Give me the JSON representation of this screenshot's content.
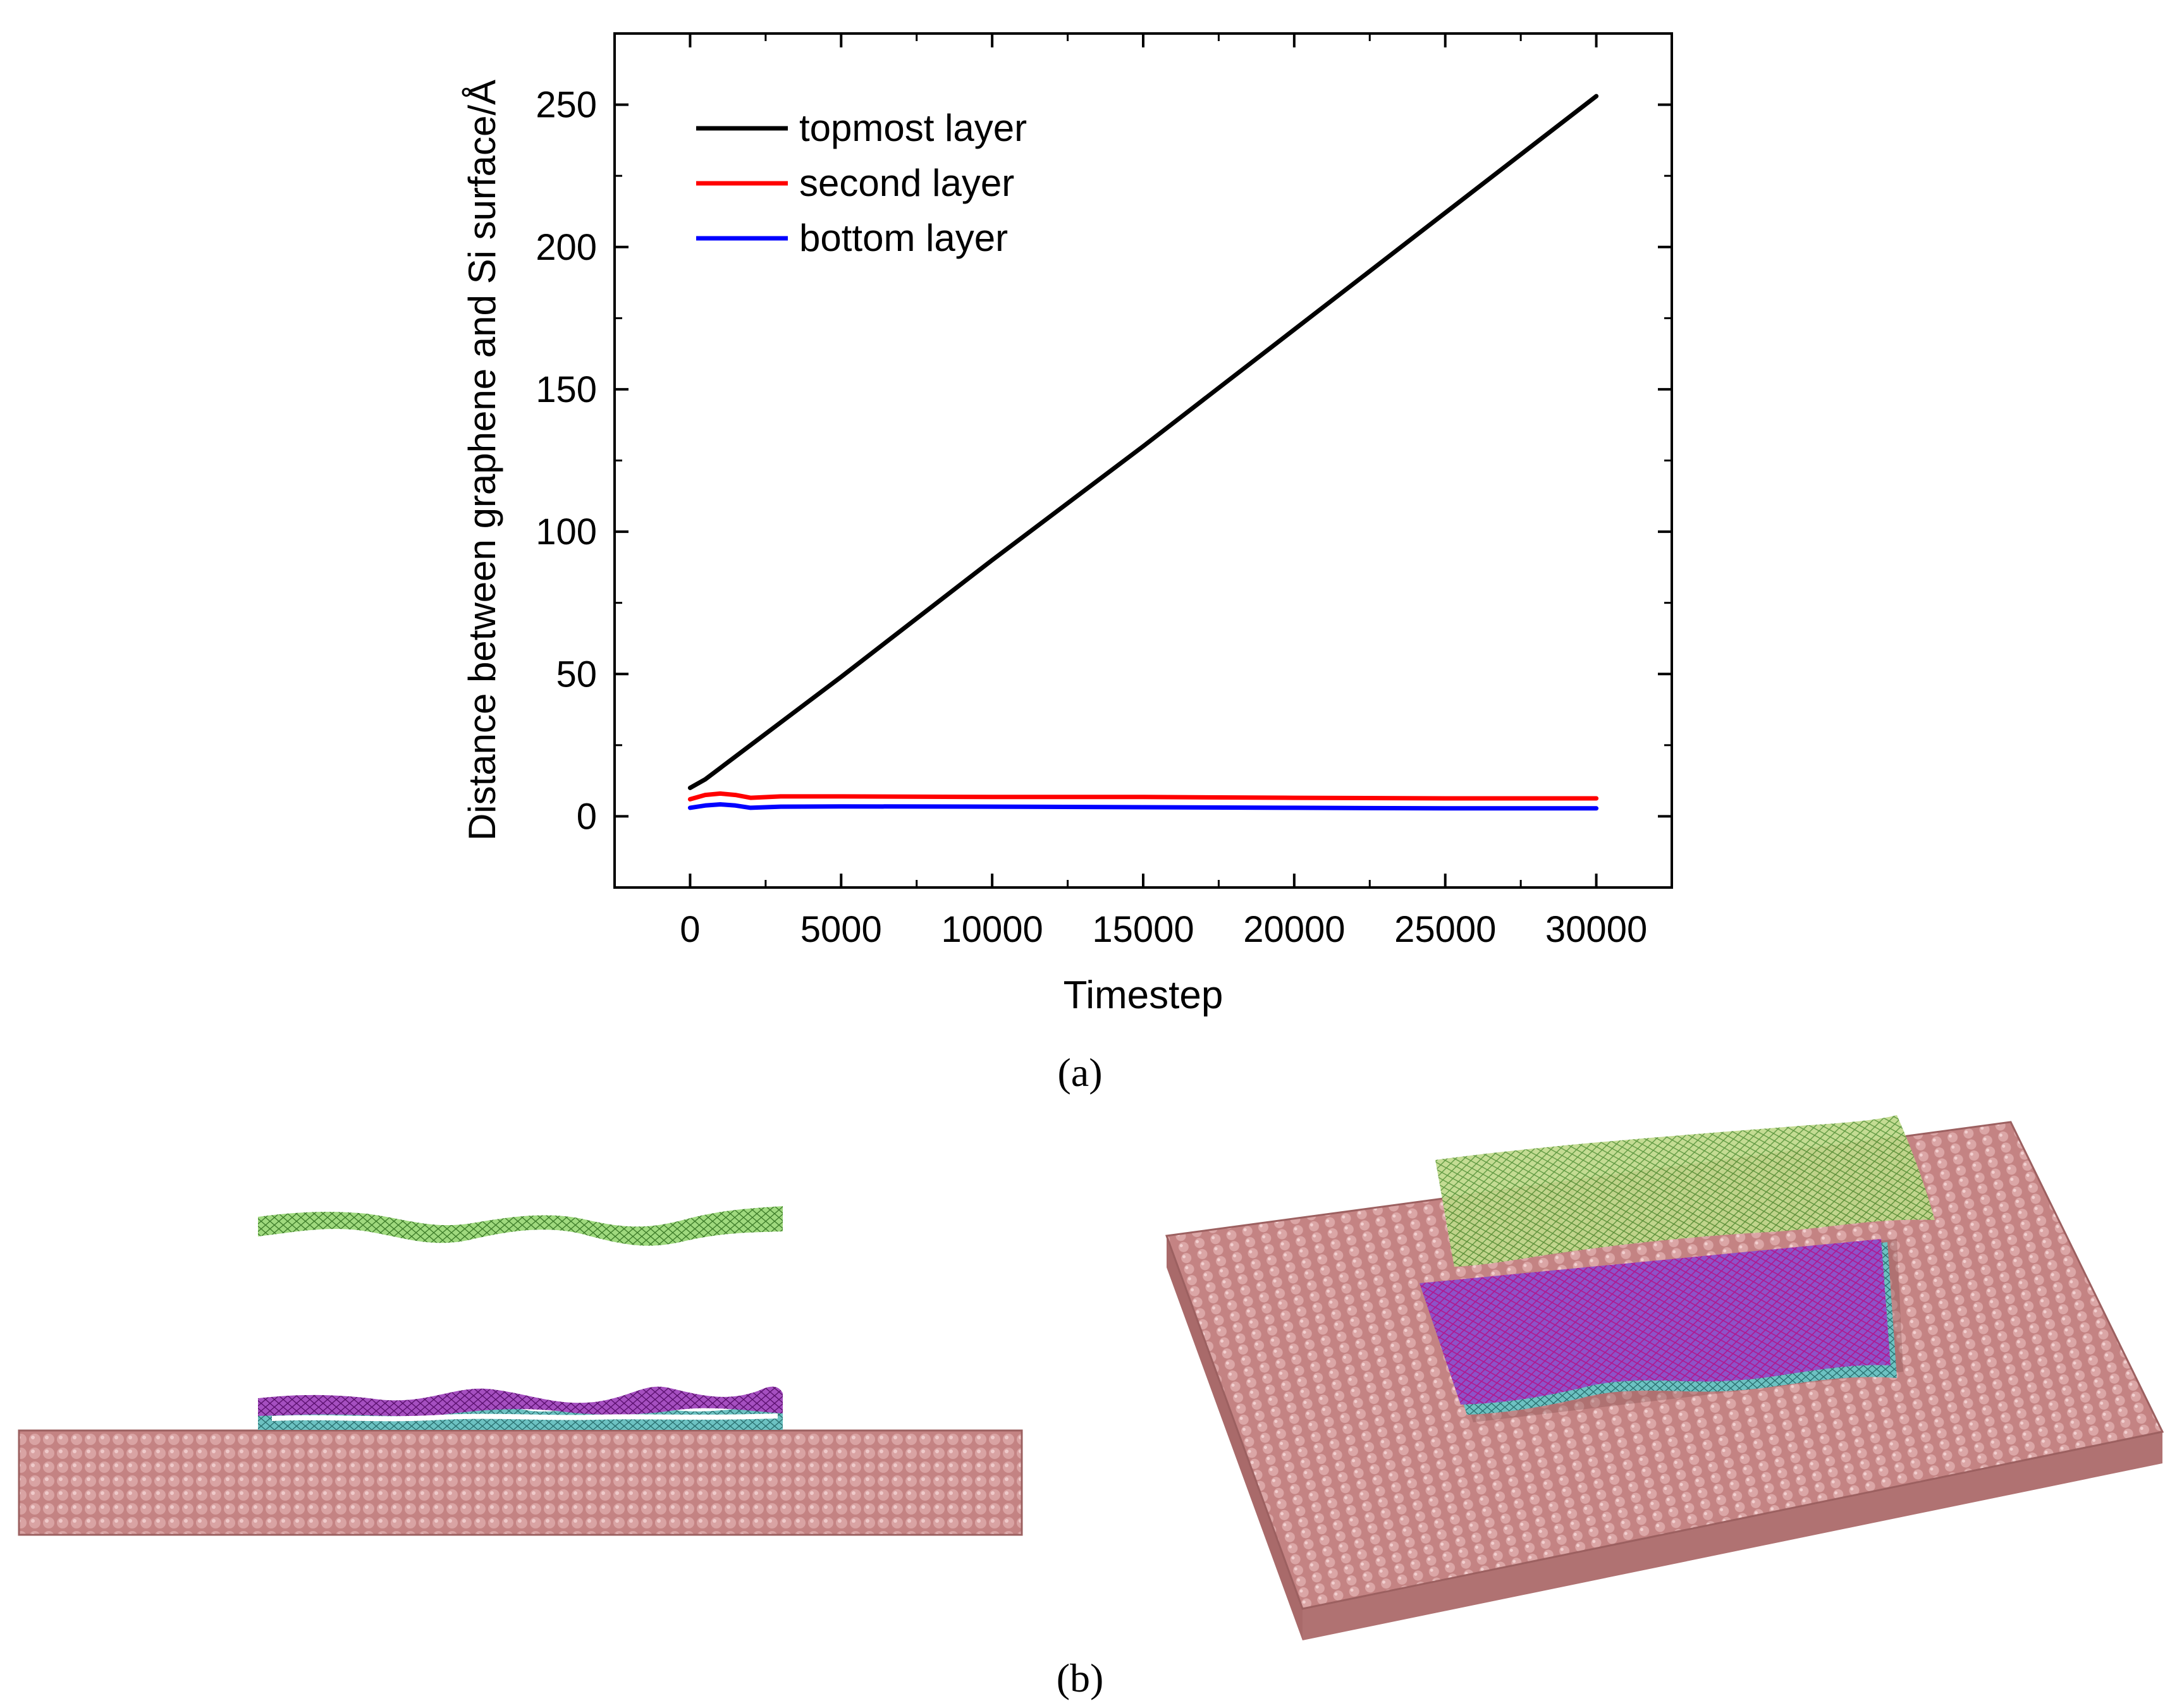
{
  "panels": {
    "a_label": "(a)",
    "b_label": "(b)"
  },
  "colors": {
    "topmost": "#000000",
    "second": "#ff0000",
    "bottom": "#0000ff",
    "silicon": "#c98a8a",
    "silicon_dark": "#8a4f4f",
    "graphene_top": "#7ecb5a",
    "graphene_second": "#8a1a9e",
    "graphene_bottom": "#3fa6a6"
  },
  "chart_data": {
    "type": "line",
    "title": "",
    "xlabel": "Timestep",
    "ylabel": "Distance between graphene and Si surface/Å",
    "xlim": [
      -2500,
      32500
    ],
    "ylim": [
      -25,
      275
    ],
    "xticks": [
      0,
      5000,
      10000,
      15000,
      20000,
      25000,
      30000
    ],
    "xtick_labels": [
      "0",
      "5000",
      "10000",
      "15000",
      "20000",
      "25000",
      "30000"
    ],
    "yticks": [
      0,
      50,
      100,
      150,
      200,
      250
    ],
    "ytick_labels": [
      "0",
      "50",
      "100",
      "150",
      "200",
      "250"
    ],
    "grid": false,
    "legend_position": "top-left",
    "series": [
      {
        "name": "topmost layer",
        "color": "#000000",
        "x": [
          0,
          500,
          1000,
          2000,
          5000,
          10000,
          15000,
          20000,
          25000,
          30000
        ],
        "y": [
          10,
          13,
          17,
          25,
          49,
          90,
          130,
          171,
          212,
          253
        ]
      },
      {
        "name": "second layer",
        "color": "#ff0000",
        "x": [
          0,
          500,
          1000,
          1500,
          2000,
          3000,
          5000,
          10000,
          15000,
          20000,
          25000,
          30000
        ],
        "y": [
          6,
          7.5,
          8,
          7.5,
          6.5,
          7,
          7,
          6.8,
          6.8,
          6.5,
          6.3,
          6.3
        ]
      },
      {
        "name": "bottom layer",
        "color": "#0000ff",
        "x": [
          0,
          500,
          1000,
          1500,
          2000,
          3000,
          5000,
          10000,
          15000,
          20000,
          25000,
          30000
        ],
        "y": [
          3,
          3.8,
          4.2,
          3.8,
          3,
          3.4,
          3.5,
          3.4,
          3.2,
          3,
          2.8,
          2.8
        ]
      }
    ]
  }
}
